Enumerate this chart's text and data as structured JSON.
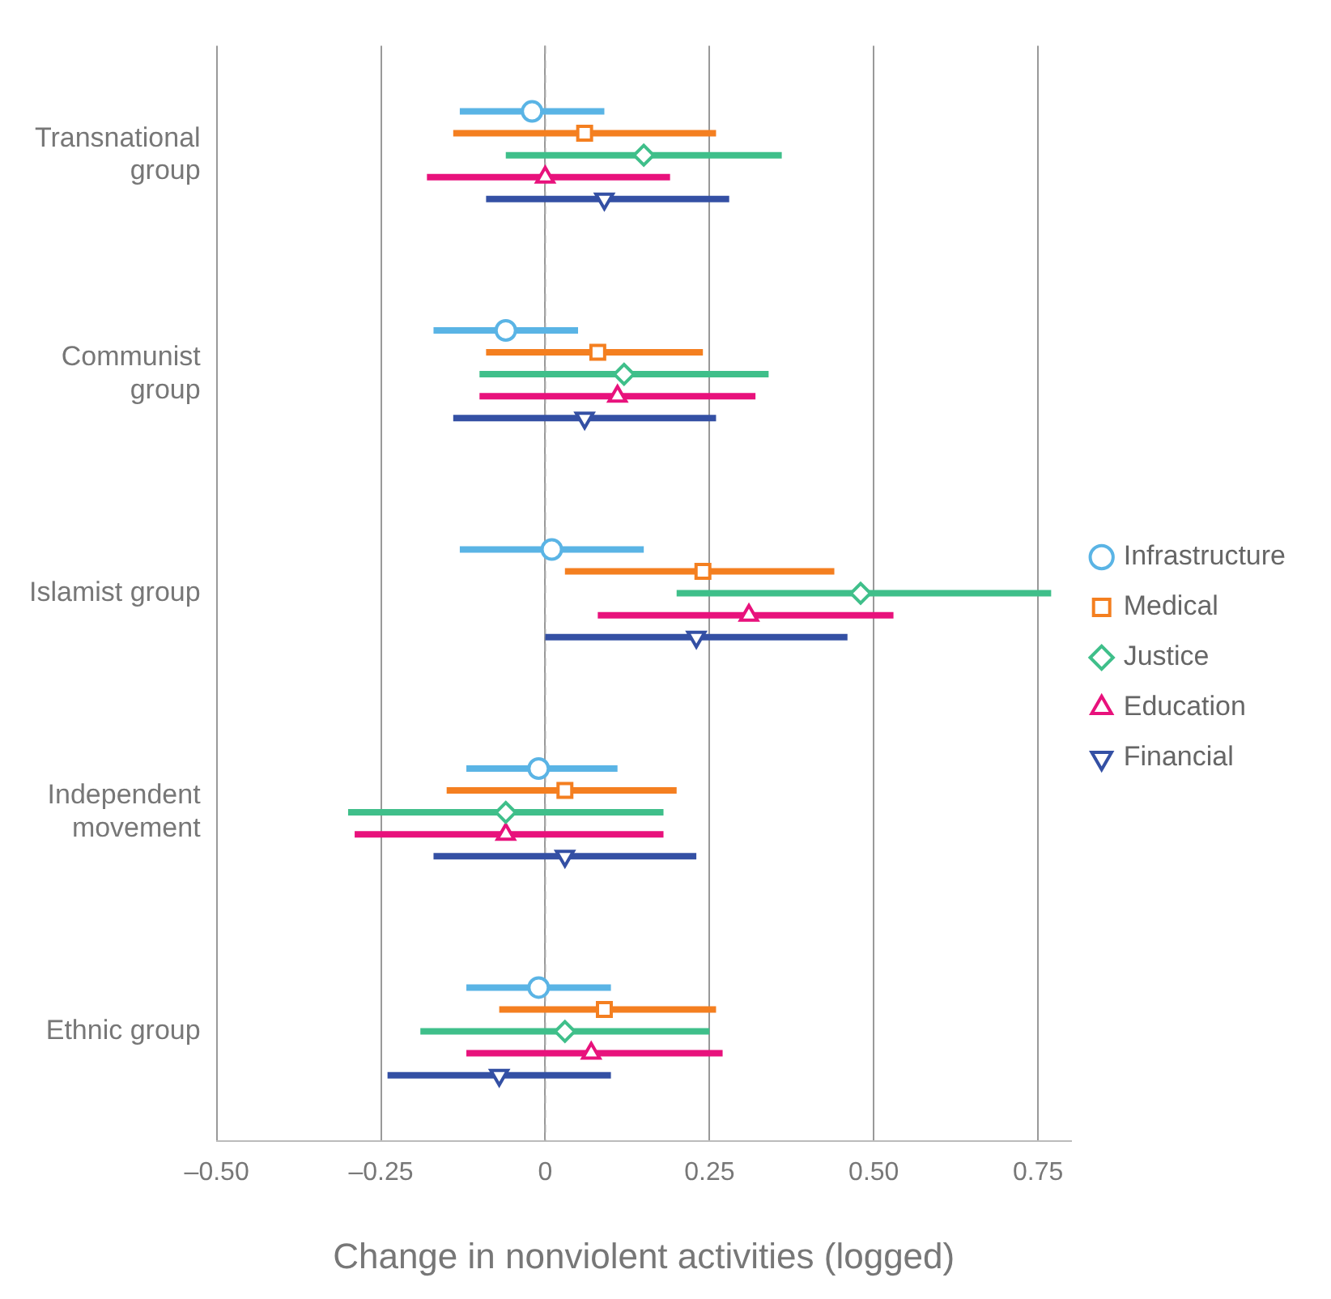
{
  "chart_data": {
    "type": "scatter",
    "orientation": "horizontal",
    "xlabel": "Change in nonviolent activities (logged)",
    "categories": [
      "Transnational group",
      "Communist group",
      "Islamist group",
      "Independent movement",
      "Ethnic group"
    ],
    "xlim": [
      -0.5,
      0.8
    ],
    "xticks": [
      {
        "value": -0.5,
        "label": "–0.50"
      },
      {
        "value": -0.25,
        "label": "–0.25"
      },
      0,
      0.25,
      {
        "value": 0.5,
        "label": "0.50"
      },
      0.75
    ],
    "grid": "x",
    "legend": "right",
    "ref_lines": [
      {
        "axis": "x",
        "value": 0,
        "line_style": "dashed",
        "color": "#aaaaaa"
      }
    ],
    "series": [
      {
        "name": "Infrastructure",
        "color": "#5ab4e5",
        "marker": "circle",
        "values": [
          -0.02,
          -0.06,
          0.01,
          -0.01,
          -0.01
        ],
        "errors": [
          [
            -0.13,
            0.09
          ],
          [
            -0.17,
            0.05
          ],
          [
            -0.13,
            0.15
          ],
          [
            -0.12,
            0.11
          ],
          [
            -0.12,
            0.1
          ]
        ]
      },
      {
        "name": "Medical",
        "color": "#f47f20",
        "marker": "square",
        "values": [
          0.06,
          0.08,
          0.24,
          0.03,
          0.09
        ],
        "errors": [
          [
            -0.14,
            0.26
          ],
          [
            -0.09,
            0.24
          ],
          [
            0.03,
            0.44
          ],
          [
            -0.15,
            0.2
          ],
          [
            -0.07,
            0.26
          ]
        ]
      },
      {
        "name": "Justice",
        "color": "#3fbf8a",
        "marker": "diamond",
        "values": [
          0.15,
          0.12,
          0.48,
          -0.06,
          0.03
        ],
        "errors": [
          [
            -0.06,
            0.36
          ],
          [
            -0.1,
            0.34
          ],
          [
            0.2,
            0.77
          ],
          [
            -0.3,
            0.18
          ],
          [
            -0.19,
            0.25
          ]
        ]
      },
      {
        "name": "Education",
        "color": "#e8127c",
        "marker": "triangle",
        "values": [
          0.0,
          0.11,
          0.31,
          -0.06,
          0.07
        ],
        "errors": [
          [
            -0.18,
            0.19
          ],
          [
            -0.1,
            0.32
          ],
          [
            0.08,
            0.53
          ],
          [
            -0.29,
            0.18
          ],
          [
            -0.12,
            0.27
          ]
        ]
      },
      {
        "name": "Financial",
        "color": "#3450a4",
        "marker": "triangle-down",
        "values": [
          0.09,
          0.06,
          0.23,
          0.03,
          -0.07
        ],
        "errors": [
          [
            -0.09,
            0.28
          ],
          [
            -0.14,
            0.26
          ],
          [
            0.0,
            0.46
          ],
          [
            -0.17,
            0.23
          ],
          [
            -0.24,
            0.1
          ]
        ]
      }
    ]
  }
}
